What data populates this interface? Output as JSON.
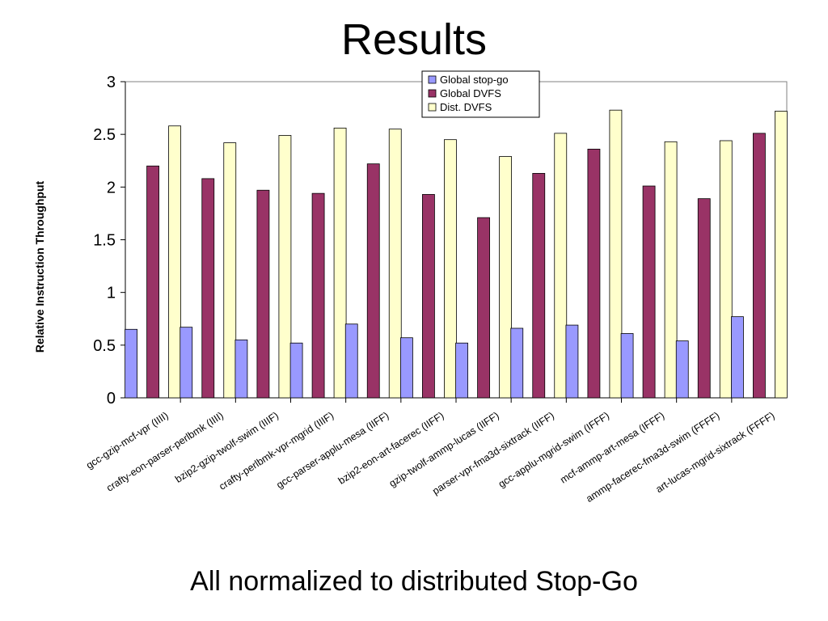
{
  "slide": {
    "title": "Results",
    "caption": "All normalized to distributed Stop-Go"
  },
  "chart_data": {
    "type": "bar",
    "title": "",
    "xlabel": "",
    "ylabel": "Relative Instruction Throughput",
    "ylim": [
      0,
      3
    ],
    "yticks": [
      0,
      0.5,
      1,
      1.5,
      2,
      2.5,
      3
    ],
    "ytick_labels": [
      "0",
      "0.5",
      "1",
      "1.5",
      "2",
      "2.5",
      "3"
    ],
    "grid": false,
    "legend_position": "top-center",
    "categories": [
      "gcc-gzip-mcf-vpr (IIII)",
      "crafty-eon-parser-perlbmk (IIII)",
      "bzip2-gzip-twolf-swim (IIIF)",
      "crafty-perlbmk-vpr-mgrid (IIIF)",
      "gcc-parser-applu-mesa (IIFF)",
      "bzip2-eon-art-facerec (IIFF)",
      "gzip-twolf-ammp-lucas (IIFF)",
      "parser-vpr-fma3d-sixtrack (IIFF)",
      "gcc-applu-mgrid-swim (IFFF)",
      "mcf-ammp-art-mesa (IFFF)",
      "ammp-facerec-fma3d-swim (FFFF)",
      "art-lucas-mgrid-sixtrack (FFFF)"
    ],
    "series": [
      {
        "name": "Global stop-go",
        "color": "#9999ff",
        "values": [
          0.65,
          0.67,
          0.55,
          0.52,
          0.7,
          0.57,
          0.52,
          0.66,
          0.69,
          0.61,
          0.54,
          0.77
        ]
      },
      {
        "name": "Global DVFS",
        "color": "#993366",
        "values": [
          2.2,
          2.08,
          1.97,
          1.94,
          2.22,
          1.93,
          1.71,
          2.13,
          2.36,
          2.01,
          1.89,
          2.51
        ]
      },
      {
        "name": "Dist. DVFS",
        "color": "#ffffcc",
        "values": [
          2.58,
          2.42,
          2.49,
          2.56,
          2.55,
          2.45,
          2.29,
          2.51,
          2.73,
          2.43,
          2.44,
          2.72
        ]
      }
    ]
  }
}
